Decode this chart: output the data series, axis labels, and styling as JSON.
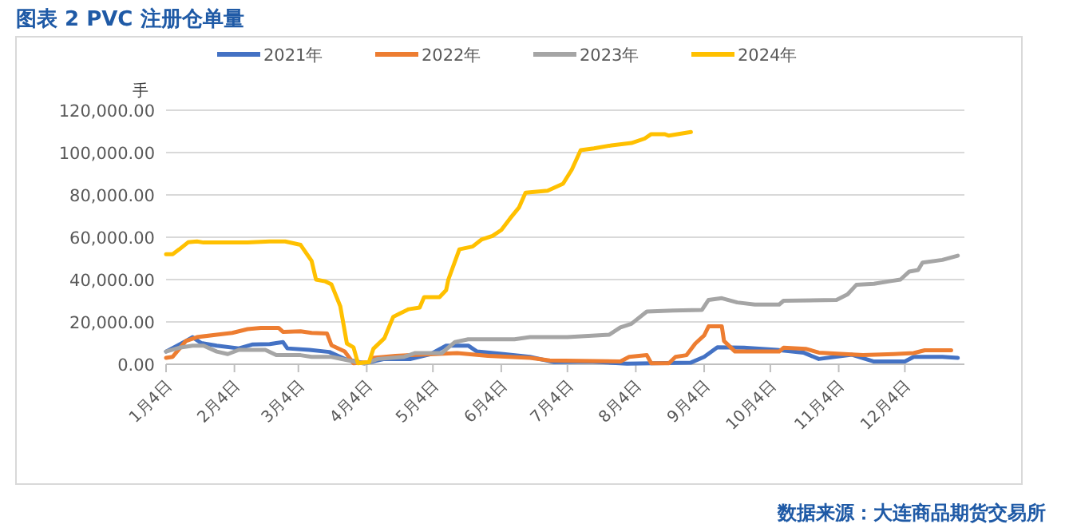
{
  "chart_data": {
    "type": "line",
    "title": "图表 2   PVC 注册仓单量",
    "ylabel": "手",
    "annotations": [
      "数据来源：大连商品期货交易所"
    ],
    "xlim": [
      "--01-04",
      "--12-31"
    ],
    "xticks": [
      {
        "value": "--01-04",
        "label": "1月4日"
      },
      {
        "value": "--02-04",
        "label": "2月4日"
      },
      {
        "value": "--03-04",
        "label": "3月4日"
      },
      {
        "value": "--04-04",
        "label": "4月4日"
      },
      {
        "value": "--05-04",
        "label": "5月4日"
      },
      {
        "value": "--06-04",
        "label": "6月4日"
      },
      {
        "value": "--07-04",
        "label": "7月4日"
      },
      {
        "value": "--08-04",
        "label": "8月4日"
      },
      {
        "value": "--09-04",
        "label": "9月4日"
      },
      {
        "value": "--10-04",
        "label": "10月4日"
      },
      {
        "value": "--11-04",
        "label": "11月4日"
      },
      {
        "value": "--12-04",
        "label": "12月4日"
      }
    ],
    "ylim": [
      0,
      120000
    ],
    "yticks": [
      {
        "value": 0,
        "label": "0.00"
      },
      {
        "value": 20000,
        "label": "20,000.00"
      },
      {
        "value": 40000,
        "label": "40,000.00"
      },
      {
        "value": 60000,
        "label": "60,000.00"
      },
      {
        "value": 80000,
        "label": "80,000.00"
      },
      {
        "value": 100000,
        "label": "100,000.00"
      },
      {
        "value": 120000,
        "label": "120,000.00"
      }
    ],
    "grid": "y",
    "legend": "top",
    "series": [
      {
        "name": "2021年",
        "color": "#4472c4",
        "x": [
          "--01-04",
          "--01-13",
          "--01-16",
          "--01-20",
          "--01-27",
          "--02-06",
          "--02-12",
          "--02-20",
          "--02-26",
          "--02-28",
          "--03-09",
          "--03-18",
          "--03-25",
          "--04-03",
          "--04-12",
          "--04-24",
          "--05-03",
          "--05-10",
          "--05-20",
          "--05-24",
          "--06-05",
          "--06-17",
          "--06-28",
          "--07-14",
          "--07-31",
          "--08-29",
          "--09-04",
          "--09-10",
          "--09-22",
          "--10-07",
          "--10-19",
          "--10-26",
          "--11-10",
          "--11-20",
          "--12-04",
          "--12-08",
          "--12-21",
          "--12-28"
        ],
        "values": [
          6000,
          11000,
          12800,
          10000,
          8800,
          7500,
          9300,
          9500,
          10500,
          7500,
          6800,
          5800,
          2500,
          500,
          2500,
          2500,
          4800,
          8800,
          8800,
          6000,
          4800,
          3500,
          1000,
          1300,
          300,
          800,
          3500,
          8000,
          7800,
          6800,
          5500,
          2500,
          4500,
          1300,
          1300,
          3500,
          3500,
          3000
        ]
      },
      {
        "name": "2022年",
        "color": "#ed7d31",
        "x": [
          "--01-04",
          "--01-07",
          "--01-13",
          "--01-18",
          "--01-27",
          "--02-03",
          "--02-10",
          "--02-16",
          "--02-24",
          "--02-26",
          "--03-05",
          "--03-10",
          "--03-17",
          "--03-19",
          "--03-25",
          "--03-29",
          "--04-05",
          "--04-07",
          "--04-17",
          "--05-05",
          "--05-15",
          "--05-29",
          "--06-17",
          "--06-26",
          "--07-28",
          "--08-01",
          "--08-09",
          "--08-11",
          "--08-19",
          "--08-22",
          "--08-27",
          "--08-31",
          "--09-04",
          "--09-06",
          "--09-12",
          "--09-13",
          "--09-18",
          "--10-08",
          "--10-10",
          "--10-20",
          "--10-26",
          "--11-15",
          "--11-29",
          "--12-08",
          "--12-13",
          "--12-25"
        ],
        "values": [
          3000,
          3500,
          11000,
          12800,
          14000,
          14800,
          16600,
          17200,
          17200,
          15300,
          15600,
          14800,
          14500,
          9000,
          6000,
          500,
          1000,
          3000,
          4000,
          4800,
          5300,
          4000,
          3000,
          1800,
          1300,
          3500,
          4300,
          500,
          500,
          3500,
          4300,
          9800,
          13600,
          17900,
          17900,
          11000,
          6000,
          6000,
          7800,
          7300,
          5500,
          4300,
          4800,
          5300,
          6600,
          6600
        ]
      },
      {
        "name": "2023年",
        "color": "#a5a5a5",
        "x": [
          "--01-04",
          "--01-10",
          "--01-16",
          "--01-21",
          "--01-27",
          "--02-01",
          "--02-06",
          "--02-18",
          "--02-23",
          "--03-05",
          "--03-10",
          "--03-19",
          "--03-29",
          "--04-03",
          "--04-09",
          "--04-21",
          "--04-26",
          "--05-08",
          "--05-14",
          "--05-20",
          "--06-10",
          "--06-17",
          "--07-04",
          "--07-23",
          "--07-28",
          "--08-02",
          "--08-09",
          "--08-21",
          "--09-03",
          "--09-06",
          "--09-12",
          "--09-19",
          "--09-27",
          "--10-08",
          "--10-10",
          "--11-03",
          "--11-08",
          "--11-12",
          "--11-20",
          "--11-27",
          "--12-02",
          "--12-06",
          "--12-10",
          "--12-12",
          "--12-21",
          "--12-28"
        ],
        "values": [
          6000,
          7800,
          8800,
          8800,
          6000,
          4800,
          6800,
          6800,
          4300,
          4300,
          3500,
          3500,
          1300,
          300,
          2500,
          3500,
          5300,
          5300,
          10500,
          11800,
          11800,
          12800,
          12800,
          14000,
          17400,
          19100,
          24900,
          25400,
          25700,
          30400,
          31200,
          29200,
          28200,
          28200,
          30000,
          30400,
          33000,
          37500,
          38000,
          39200,
          40000,
          43800,
          44500,
          48000,
          49300,
          51300
        ]
      },
      {
        "name": "2024年",
        "color": "#ffc000",
        "x": [
          "--01-04",
          "--01-07",
          "--01-10",
          "--01-14",
          "--01-18",
          "--01-21",
          "--02-10",
          "--02-20",
          "--02-27",
          "--03-05",
          "--03-10",
          "--03-12",
          "--03-16",
          "--03-19",
          "--03-23",
          "--03-26",
          "--03-29",
          "--03-31",
          "--04-05",
          "--04-07",
          "--04-12",
          "--04-16",
          "--04-19",
          "--04-23",
          "--04-28",
          "--04-30",
          "--05-07",
          "--05-10",
          "--05-11",
          "--05-16",
          "--05-22",
          "--05-26",
          "--05-31",
          "--06-04",
          "--06-08",
          "--06-12",
          "--06-15",
          "--06-25",
          "--07-02",
          "--07-06",
          "--07-10",
          "--07-16",
          "--07-24",
          "--08-02",
          "--08-08",
          "--08-11",
          "--08-17",
          "--08-19",
          "--08-29"
        ],
        "values": [
          52000,
          52000,
          54300,
          57600,
          58000,
          57500,
          57500,
          58000,
          58000,
          56400,
          48800,
          40000,
          39200,
          37700,
          27400,
          9800,
          8000,
          500,
          1000,
          7300,
          12300,
          22400,
          24000,
          26000,
          26800,
          31700,
          31700,
          35000,
          40000,
          54300,
          55600,
          58900,
          60600,
          63400,
          68900,
          74000,
          81000,
          82000,
          85300,
          92000,
          101100,
          102000,
          103400,
          104500,
          106600,
          108700,
          108700,
          108000,
          109700
        ]
      }
    ]
  }
}
